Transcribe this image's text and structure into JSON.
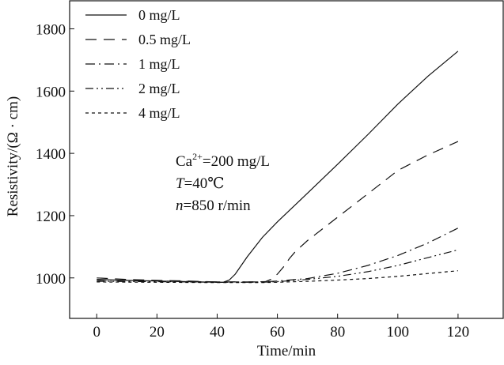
{
  "chart_data": {
    "type": "line",
    "title": "",
    "xlabel": "Time/min",
    "ylabel": "Resistivity/(Ω · cm)",
    "xlim": [
      -9,
      135
    ],
    "ylim": [
      870,
      1890
    ],
    "xticks": [
      0,
      20,
      40,
      60,
      80,
      100,
      120
    ],
    "yticks": [
      1000,
      1200,
      1400,
      1600,
      1800
    ],
    "legend_position": "top-left",
    "series": [
      {
        "name": "0 mg/L",
        "dash": "solid",
        "x": [
          0,
          10,
          20,
          30,
          40,
          42,
          44,
          46,
          48,
          50,
          55,
          60,
          70,
          80,
          90,
          100,
          110,
          120
        ],
        "y": [
          995,
          992,
          990,
          988,
          986,
          986,
          993,
          1012,
          1040,
          1068,
          1130,
          1180,
          1272,
          1365,
          1460,
          1558,
          1648,
          1728
        ]
      },
      {
        "name": "0.5 mg/L",
        "dash": "long-dash",
        "x": [
          0,
          10,
          20,
          30,
          40,
          50,
          56,
          58,
          60,
          62,
          64,
          66,
          70,
          80,
          90,
          100,
          110,
          120
        ],
        "y": [
          1000,
          995,
          992,
          990,
          987,
          987,
          988,
          996,
          1012,
          1035,
          1062,
          1085,
          1120,
          1195,
          1270,
          1345,
          1395,
          1438
        ]
      },
      {
        "name": "1 mg/L",
        "dash": "dash-dot",
        "x": [
          0,
          20,
          40,
          55,
          60,
          70,
          80,
          90,
          100,
          110,
          120
        ],
        "y": [
          993,
          990,
          987,
          987,
          990,
          998,
          1015,
          1040,
          1072,
          1112,
          1160
        ]
      },
      {
        "name": "2 mg/L",
        "dash": "dash-dot-dot",
        "x": [
          0,
          20,
          40,
          55,
          60,
          70,
          80,
          90,
          100,
          110,
          120
        ],
        "y": [
          989,
          988,
          986,
          986,
          988,
          995,
          1005,
          1020,
          1040,
          1065,
          1090
        ]
      },
      {
        "name": "4 mg/L",
        "dash": "short-dash",
        "x": [
          0,
          20,
          40,
          55,
          60,
          70,
          80,
          90,
          100,
          110,
          120
        ],
        "y": [
          987,
          986,
          985,
          985,
          986,
          989,
          993,
          998,
          1005,
          1014,
          1023
        ]
      }
    ],
    "annotations": {
      "ion_label": "Ca",
      "ion_charge": "2+",
      "ion_value": "=200 mg/L",
      "temp_symbol": "T",
      "temp_value": "=40℃",
      "speed_symbol": "n",
      "speed_value": "=850 r/min"
    }
  }
}
